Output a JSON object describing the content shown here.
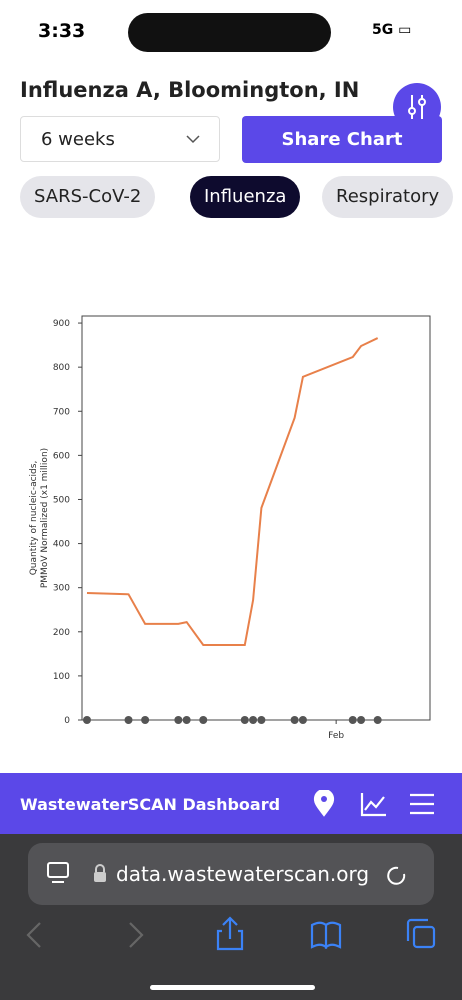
{
  "status": {
    "time": "3:33",
    "network": "5G"
  },
  "header": {
    "title": "Influenza A, Bloomington, IN",
    "range": "6 weeks",
    "share": "Share Chart"
  },
  "tabs": [
    "SARS-CoV-2",
    "Influenza",
    "Respiratory"
  ],
  "chart_data": {
    "type": "line",
    "y_label": [
      "Quantity of nucleic-acids,",
      "PMMoV Normalized (x1 million)"
    ],
    "x": [
      2,
      7,
      9,
      13,
      14,
      16,
      21,
      22,
      23,
      27,
      28,
      34,
      35,
      37
    ],
    "series": [
      {
        "color": "#e8804a",
        "values": [
          288,
          285,
          218,
          218,
          222,
          170,
          170,
          272,
          481,
          685,
          778,
          823,
          848,
          866
        ]
      },
      {
        "color": "#555555",
        "marker": "dot",
        "values": [
          0,
          0,
          0,
          0,
          0,
          0,
          0,
          0,
          0,
          0,
          0,
          0,
          0,
          0
        ]
      }
    ],
    "xlim": [
      1.4,
      43.3
    ],
    "xticks": [
      {
        "value": 32,
        "label": "Feb"
      }
    ],
    "ylim": [
      0,
      916
    ],
    "yticks": [
      0,
      100,
      200,
      300,
      400,
      500,
      600,
      700,
      800,
      900
    ]
  },
  "footer": {
    "title": "WastewaterSCAN Dashboard"
  },
  "browser": {
    "url": "data.wastewaterscan.org"
  }
}
